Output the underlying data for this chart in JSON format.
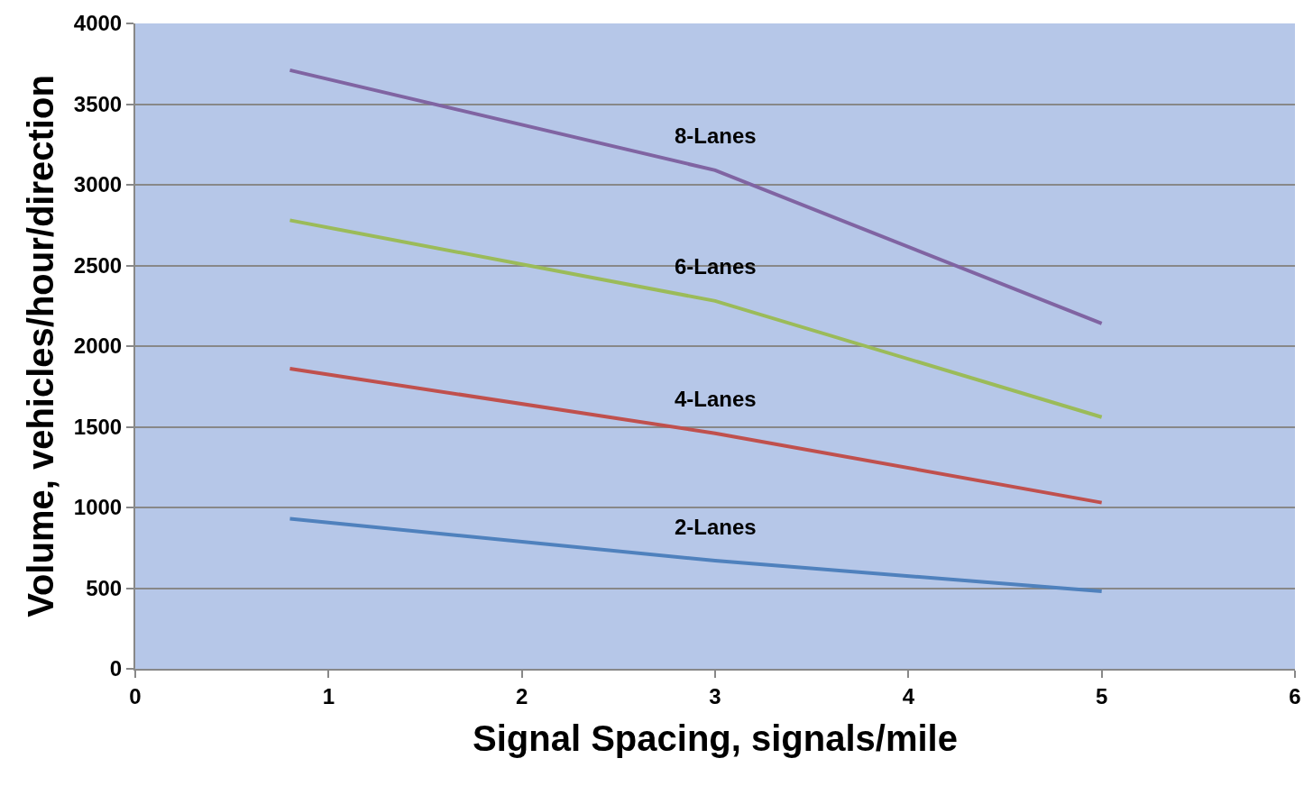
{
  "chart_data": {
    "type": "line",
    "xlabel": "Signal Spacing, signals/mile",
    "ylabel": "Volume, vehicles/hour/direction",
    "x": [
      0.8,
      3,
      5
    ],
    "series": [
      {
        "name": "8-Lanes",
        "color": "#8064a2",
        "values": [
          3710,
          3090,
          2140
        ]
      },
      {
        "name": "6-Lanes",
        "color": "#9bbb59",
        "values": [
          2780,
          2280,
          1560
        ]
      },
      {
        "name": "4-Lanes",
        "color": "#c0504d",
        "values": [
          1860,
          1460,
          1030
        ]
      },
      {
        "name": "2-Lanes",
        "color": "#4f81bd",
        "values": [
          930,
          670,
          480
        ]
      }
    ],
    "xlim": [
      0,
      6
    ],
    "xticks": [
      0,
      1,
      2,
      3,
      4,
      5,
      6
    ],
    "ylim": [
      0,
      4000
    ],
    "yticks": [
      0,
      500,
      1000,
      1500,
      2000,
      2500,
      3000,
      3500,
      4000
    ],
    "grid": "y",
    "legend": false,
    "marker": "none",
    "line_style": "solid"
  }
}
